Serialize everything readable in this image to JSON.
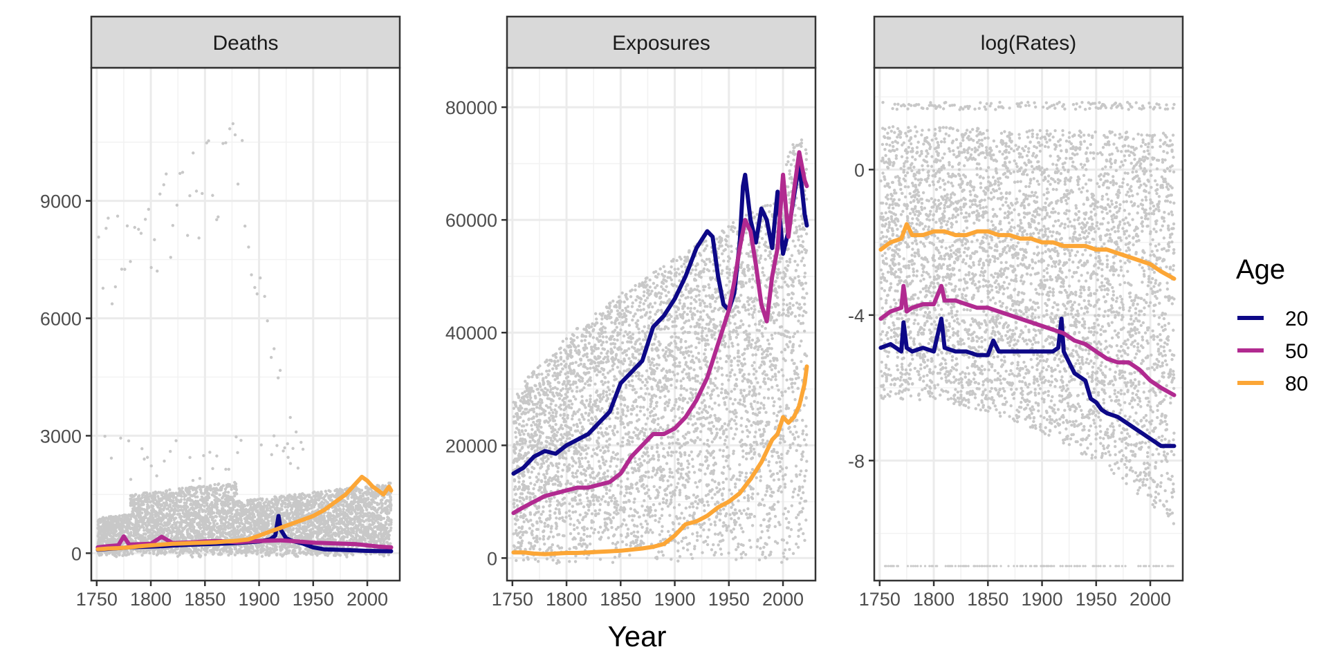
{
  "chart_data": {
    "type": "line",
    "xlabel": "Year",
    "legend": {
      "title": "Age",
      "placement": "right",
      "entries": [
        {
          "label": "20",
          "color": "#0d0887"
        },
        {
          "label": "50",
          "color": "#b12a90"
        },
        {
          "label": "80",
          "color": "#fca636"
        }
      ]
    },
    "background_points_color": "#c8c8c8",
    "grid": true,
    "x_ticks": [
      "1750",
      "1800",
      "1850",
      "1900",
      "1950",
      "2000"
    ],
    "xlim": [
      1745,
      2030
    ],
    "panels": [
      {
        "title": "Deaths",
        "ylim": [
          -700,
          12400
        ],
        "y_ticks": [
          "0",
          "3000",
          "6000",
          "9000"
        ],
        "y_tick_values": [
          0,
          3000,
          6000,
          9000
        ],
        "series": [
          {
            "name": "20",
            "x": [
              1751,
              1760,
              1770,
              1780,
              1790,
              1800,
              1810,
              1820,
              1830,
              1840,
              1850,
              1860,
              1870,
              1880,
              1890,
              1900,
              1910,
              1915,
              1918,
              1920,
              1925,
              1930,
              1940,
              1950,
              1960,
              1970,
              1980,
              1990,
              2000,
              2010,
              2022
            ],
            "values": [
              90,
              110,
              130,
              150,
              160,
              170,
              180,
              195,
              210,
              220,
              230,
              240,
              250,
              260,
              280,
              300,
              350,
              450,
              950,
              600,
              380,
              320,
              250,
              150,
              100,
              90,
              80,
              70,
              60,
              55,
              50
            ]
          },
          {
            "name": "50",
            "x": [
              1751,
              1760,
              1770,
              1775,
              1780,
              1790,
              1800,
              1810,
              1820,
              1830,
              1840,
              1850,
              1860,
              1870,
              1880,
              1890,
              1900,
              1910,
              1920,
              1930,
              1940,
              1950,
              1960,
              1970,
              1980,
              1990,
              2000,
              2010,
              2022
            ],
            "values": [
              150,
              180,
              200,
              430,
              220,
              230,
              240,
              420,
              260,
              270,
              280,
              300,
              310,
              300,
              280,
              300,
              310,
              320,
              330,
              310,
              290,
              270,
              260,
              250,
              240,
              230,
              200,
              170,
              150
            ]
          },
          {
            "name": "80",
            "x": [
              1751,
              1760,
              1770,
              1780,
              1790,
              1800,
              1810,
              1820,
              1830,
              1840,
              1850,
              1860,
              1870,
              1880,
              1890,
              1900,
              1910,
              1920,
              1930,
              1940,
              1950,
              1960,
              1970,
              1980,
              1990,
              1995,
              2000,
              2005,
              2010,
              2015,
              2020,
              2022
            ],
            "values": [
              100,
              120,
              130,
              150,
              180,
              200,
              220,
              240,
              250,
              260,
              270,
              280,
              300,
              320,
              350,
              450,
              550,
              650,
              750,
              850,
              950,
              1100,
              1300,
              1500,
              1800,
              1950,
              1850,
              1700,
              1600,
              1500,
              1700,
              1600
            ]
          }
        ]
      },
      {
        "title": "Exposures",
        "ylim": [
          -4000,
          87000
        ],
        "y_ticks": [
          "0",
          "20000",
          "40000",
          "60000",
          "80000"
        ],
        "y_tick_values": [
          0,
          20000,
          40000,
          60000,
          80000
        ],
        "series": [
          {
            "name": "20",
            "x": [
              1751,
              1760,
              1770,
              1780,
              1790,
              1800,
              1810,
              1820,
              1830,
              1840,
              1850,
              1860,
              1870,
              1880,
              1890,
              1900,
              1910,
              1920,
              1930,
              1935,
              1940,
              1945,
              1950,
              1955,
              1960,
              1963,
              1965,
              1970,
              1975,
              1980,
              1985,
              1990,
              1995,
              2000,
              2005,
              2010,
              2015,
              2020,
              2022
            ],
            "values": [
              15000,
              16000,
              18000,
              19000,
              18500,
              20000,
              21000,
              22000,
              24000,
              26000,
              31000,
              33000,
              35000,
              41000,
              43000,
              46000,
              50000,
              55000,
              58000,
              57000,
              50000,
              45000,
              44000,
              47000,
              56000,
              66000,
              68000,
              60000,
              56000,
              62000,
              60000,
              55000,
              65000,
              54000,
              58000,
              64000,
              70000,
              61000,
              59000
            ]
          },
          {
            "name": "50",
            "x": [
              1751,
              1760,
              1770,
              1780,
              1790,
              1800,
              1810,
              1820,
              1830,
              1840,
              1850,
              1860,
              1870,
              1880,
              1890,
              1900,
              1910,
              1920,
              1930,
              1940,
              1950,
              1955,
              1960,
              1965,
              1970,
              1975,
              1980,
              1985,
              1990,
              1995,
              2000,
              2005,
              2010,
              2015,
              2020,
              2022
            ],
            "values": [
              8000,
              9000,
              10000,
              11000,
              11500,
              12000,
              12500,
              12500,
              13000,
              13500,
              15000,
              18000,
              20000,
              22000,
              22000,
              23000,
              25000,
              28000,
              32000,
              38000,
              44000,
              49000,
              55000,
              60000,
              58000,
              52000,
              45000,
              42000,
              50000,
              55000,
              68000,
              57000,
              65000,
              72000,
              67000,
              66000
            ]
          },
          {
            "name": "80",
            "x": [
              1751,
              1760,
              1770,
              1780,
              1790,
              1800,
              1810,
              1820,
              1830,
              1840,
              1850,
              1860,
              1870,
              1880,
              1890,
              1900,
              1910,
              1920,
              1930,
              1940,
              1950,
              1960,
              1970,
              1980,
              1985,
              1990,
              1995,
              2000,
              2005,
              2010,
              2015,
              2020,
              2022
            ],
            "values": [
              1000,
              1000,
              800,
              700,
              800,
              900,
              900,
              1000,
              1100,
              1200,
              1300,
              1500,
              1700,
              2000,
              2500,
              4000,
              6000,
              6500,
              7500,
              9000,
              10000,
              11500,
              14000,
              17000,
              19000,
              21000,
              22000,
              25000,
              24000,
              25000,
              27000,
              31000,
              34000
            ]
          }
        ]
      },
      {
        "title": "log(Rates)",
        "ylim": [
          -11.3,
          2.8
        ],
        "y_ticks": [
          "-8",
          "-4",
          "0"
        ],
        "y_tick_values": [
          -8,
          -4,
          0
        ],
        "series": [
          {
            "name": "20",
            "x": [
              1751,
              1760,
              1770,
              1772,
              1775,
              1780,
              1790,
              1800,
              1807,
              1810,
              1820,
              1830,
              1840,
              1850,
              1855,
              1860,
              1870,
              1880,
              1890,
              1900,
              1910,
              1915,
              1918,
              1920,
              1925,
              1930,
              1940,
              1945,
              1950,
              1955,
              1960,
              1970,
              1980,
              1990,
              2000,
              2010,
              2022
            ],
            "values": [
              -4.9,
              -4.8,
              -5.0,
              -4.2,
              -4.9,
              -5.0,
              -4.9,
              -5.0,
              -4.1,
              -4.9,
              -5.0,
              -5.0,
              -5.1,
              -5.1,
              -4.7,
              -5.0,
              -5.0,
              -5.0,
              -5.0,
              -5.0,
              -5.0,
              -4.9,
              -4.1,
              -5.0,
              -5.3,
              -5.6,
              -5.8,
              -6.3,
              -6.4,
              -6.6,
              -6.7,
              -6.8,
              -7.0,
              -7.2,
              -7.4,
              -7.6,
              -7.6
            ]
          },
          {
            "name": "50",
            "x": [
              1751,
              1760,
              1770,
              1772,
              1775,
              1780,
              1790,
              1800,
              1807,
              1810,
              1820,
              1830,
              1840,
              1850,
              1860,
              1870,
              1880,
              1890,
              1900,
              1910,
              1920,
              1930,
              1940,
              1950,
              1960,
              1970,
              1980,
              1990,
              2000,
              2010,
              2022
            ],
            "values": [
              -4.1,
              -3.9,
              -3.8,
              -3.2,
              -3.9,
              -3.8,
              -3.7,
              -3.7,
              -3.2,
              -3.6,
              -3.6,
              -3.7,
              -3.8,
              -3.8,
              -3.9,
              -4.0,
              -4.1,
              -4.2,
              -4.3,
              -4.4,
              -4.5,
              -4.7,
              -4.8,
              -5.0,
              -5.2,
              -5.3,
              -5.3,
              -5.5,
              -5.8,
              -6.0,
              -6.2
            ]
          },
          {
            "name": "80",
            "x": [
              1751,
              1760,
              1770,
              1775,
              1780,
              1790,
              1800,
              1810,
              1820,
              1830,
              1840,
              1850,
              1860,
              1870,
              1880,
              1890,
              1900,
              1910,
              1920,
              1930,
              1940,
              1950,
              1960,
              1970,
              1980,
              1990,
              2000,
              2010,
              2022
            ],
            "values": [
              -2.2,
              -2.0,
              -1.9,
              -1.5,
              -1.8,
              -1.8,
              -1.7,
              -1.7,
              -1.8,
              -1.8,
              -1.7,
              -1.7,
              -1.8,
              -1.8,
              -1.9,
              -1.9,
              -2.0,
              -2.0,
              -2.1,
              -2.1,
              -2.1,
              -2.2,
              -2.2,
              -2.3,
              -2.4,
              -2.5,
              -2.6,
              -2.8,
              -3.0
            ]
          }
        ]
      }
    ]
  }
}
